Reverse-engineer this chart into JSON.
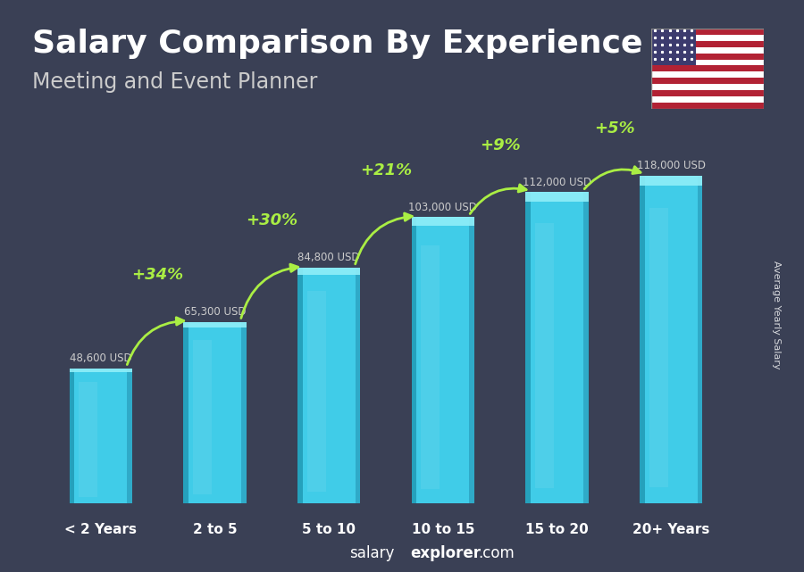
{
  "categories": [
    "< 2 Years",
    "2 to 5",
    "5 to 10",
    "10 to 15",
    "15 to 20",
    "20+ Years"
  ],
  "values": [
    48600,
    65300,
    84800,
    103000,
    112000,
    118000
  ],
  "salary_labels": [
    "48,600 USD",
    "65,300 USD",
    "84,800 USD",
    "103,000 USD",
    "112,000 USD",
    "118,000 USD"
  ],
  "pct_changes": [
    null,
    "+34%",
    "+30%",
    "+21%",
    "+9%",
    "+5%"
  ],
  "bar_color_face": "#40CCE8",
  "title": "Salary Comparison By Experience",
  "subtitle": "Meeting and Event Planner",
  "title_fontsize": 26,
  "subtitle_fontsize": 17,
  "ylabel": "Average Yearly Salary",
  "bottom_text_normal": "salary",
  "bottom_text_bold": "explorer",
  "bottom_text_suffix": ".com",
  "pct_color": "#AAEE44",
  "salary_label_color": "#CCCCCC",
  "background_color": "#3a4055",
  "text_color": "#FFFFFF",
  "ylim_max": 140000,
  "bar_width": 0.55
}
